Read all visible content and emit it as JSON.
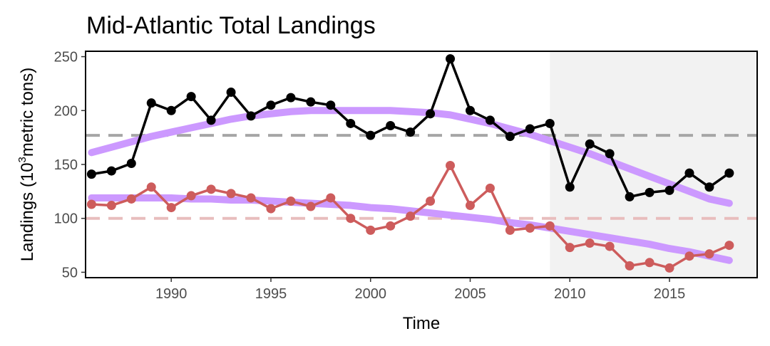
{
  "chart_data": {
    "type": "line",
    "title": "Mid-Atlantic Total Landings",
    "xlabel": "Time",
    "ylabel": {
      "prefix": "Landings (10",
      "sup": "3",
      "suffix": "metric tons)"
    },
    "xlim": [
      1985.7,
      2019.4
    ],
    "ylim": [
      45,
      255
    ],
    "x_ticks": [
      1990,
      1995,
      2000,
      2005,
      2010,
      2015
    ],
    "x_tick_labels": [
      "1990",
      "1995",
      "2000",
      "2005",
      "2010",
      "2015"
    ],
    "y_ticks": [
      50,
      100,
      150,
      200,
      250
    ],
    "y_tick_labels": [
      "50",
      "100",
      "150",
      "200",
      "250"
    ],
    "grid": false,
    "legend": "none",
    "shaded_region": {
      "x_start": 2009,
      "x_end": 2019.4,
      "color": "#f2f2f2"
    },
    "x": [
      1986,
      1987,
      1988,
      1989,
      1990,
      1991,
      1992,
      1993,
      1994,
      1995,
      1996,
      1997,
      1998,
      1999,
      2000,
      2001,
      2002,
      2003,
      2004,
      2005,
      2006,
      2007,
      2008,
      2009,
      2010,
      2011,
      2012,
      2013,
      2014,
      2015,
      2016,
      2017,
      2018
    ],
    "series": [
      {
        "color": "#000000",
        "values": [
          141,
          144,
          151,
          207,
          200,
          213,
          191,
          217,
          195,
          205,
          212,
          208,
          205,
          188,
          177,
          186,
          180,
          197,
          248,
          200,
          191,
          176,
          183,
          188,
          129,
          169,
          160,
          120,
          124,
          126,
          142,
          129,
          142
        ],
        "mean": 177,
        "mean_color": "#a6a6a6",
        "trend": [
          161,
          166,
          171,
          176,
          180,
          184,
          188,
          192,
          195,
          197,
          199,
          200,
          200,
          200,
          200,
          200,
          199,
          198,
          196,
          192,
          188,
          183,
          178,
          172,
          166,
          160,
          153,
          146,
          139,
          132,
          125,
          118,
          114
        ]
      },
      {
        "color": "#cd5c5c",
        "values": [
          113,
          112,
          118,
          129,
          110,
          121,
          127,
          123,
          119,
          109,
          116,
          111,
          119,
          100,
          89,
          93,
          102,
          116,
          149,
          112,
          128,
          89,
          91,
          93,
          73,
          77,
          74,
          56,
          59,
          54,
          65,
          67,
          75
        ],
        "mean": 100,
        "mean_color": "#e8bdbd",
        "trend": [
          119,
          119,
          119,
          119,
          119,
          118,
          118,
          117,
          117,
          116,
          115,
          114,
          113,
          112,
          110,
          109,
          107,
          105,
          103,
          101,
          99,
          96,
          94,
          91,
          88,
          85,
          82,
          79,
          76,
          72,
          69,
          65,
          61
        ]
      }
    ],
    "trend_color": "#cc99ff"
  }
}
